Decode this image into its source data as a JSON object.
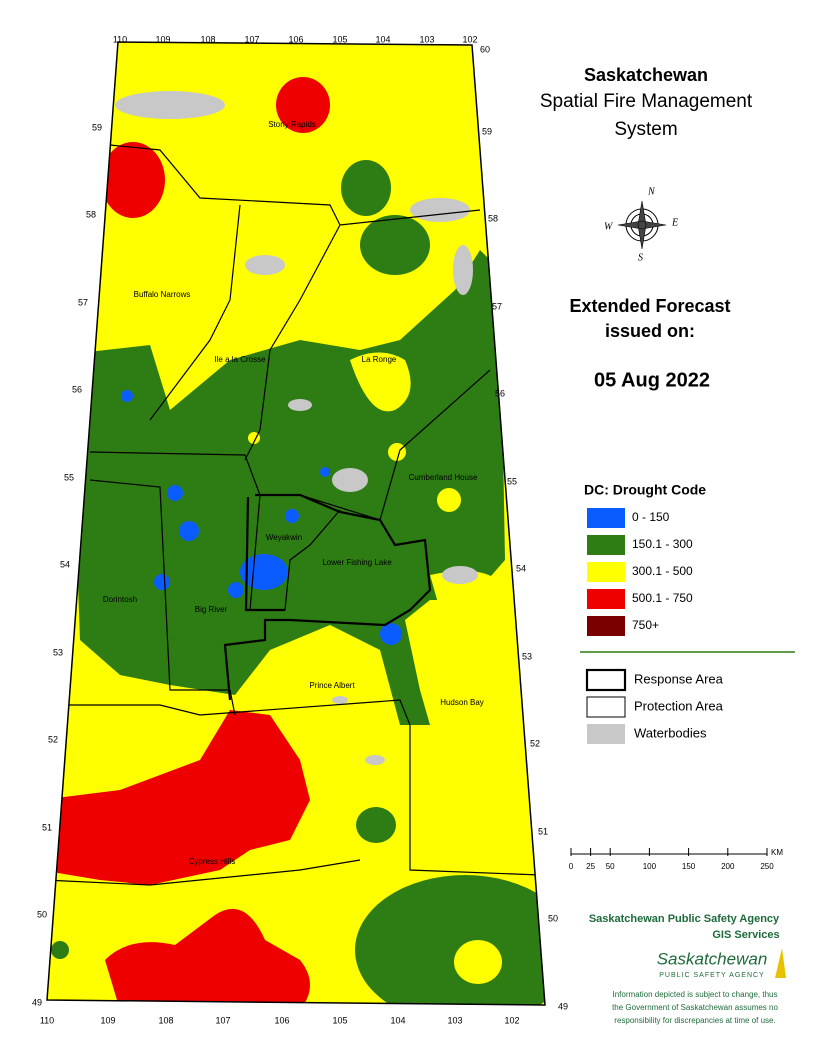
{
  "header": {
    "title": "Saskatchewan",
    "subtitle_lines": [
      "Spatial Fire Management",
      "System"
    ]
  },
  "forecast": {
    "heading_lines": [
      "Extended Forecast",
      "issued on:"
    ],
    "date": "05 Aug 2022"
  },
  "legend": {
    "title": "DC: Drought Code",
    "items": [
      {
        "label": "0 - 150",
        "color": "#0a5cff"
      },
      {
        "label": "150.1 - 300",
        "color": "#2e7d14"
      },
      {
        "label": "300.1 - 500",
        "color": "#ffff00"
      },
      {
        "label": "500.1 - 750",
        "color": "#ee0000"
      },
      {
        "label": "750+",
        "color": "#7a0000"
      }
    ],
    "boundaries": [
      {
        "label": "Response Area"
      },
      {
        "label": "Protection Area"
      },
      {
        "label": "Waterbodies"
      }
    ]
  },
  "scale_bar": {
    "ticks": [
      0,
      25,
      50,
      100,
      150,
      200,
      250
    ],
    "unit": "KM"
  },
  "compass": {
    "n": "N",
    "e": "E",
    "s": "S",
    "w": "W"
  },
  "graticule": {
    "longitudes": [
      110,
      109,
      108,
      107,
      106,
      105,
      104,
      103,
      102
    ],
    "latitudes": [
      49,
      50,
      51,
      52,
      53,
      54,
      55,
      56,
      57,
      58,
      59,
      60
    ]
  },
  "places": [
    "Stony Rapids",
    "Buffalo Narrows",
    "Ile a la Crosse",
    "La Ronge",
    "Cumberland House",
    "Weyakwin",
    "Lower Fishing Lake",
    "Dorintosh",
    "Big River",
    "Prince Albert",
    "Hudson Bay",
    "Cypress Hills"
  ],
  "agency": {
    "name": "Saskatchewan Public Safety Agency",
    "unit": "GIS Services",
    "logo_word": "Saskatchewan",
    "logo_sub": "PUBLIC SAFETY AGENCY"
  },
  "disclaimer_lines": [
    "Information depicted is subject to change, thus",
    "the Government of Saskatchewan assumes no",
    "responsibility for discrepancies at time of use."
  ]
}
